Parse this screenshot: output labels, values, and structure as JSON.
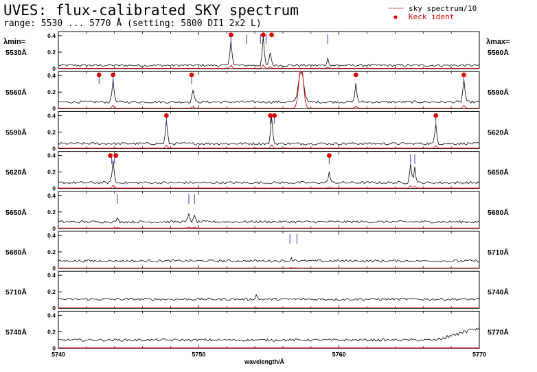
{
  "header": {
    "title": "UVES: flux-calibrated SKY spectrum",
    "subtitle": "range: 5530 ... 5770 Å (setting: 5800 DI1 2x2 L)",
    "lambda_min_label": "λmin=",
    "lambda_max_label": "λmax="
  },
  "legend": {
    "sky_label": "sky spectrum/10",
    "keck_label": "Keck ident"
  },
  "colors": {
    "spectrum": "#000000",
    "sky": "#e00000",
    "keck": "#e00000",
    "marker": "#3333cc"
  },
  "chart_data": {
    "type": "line",
    "xlabel": "wavelength/Å",
    "x_ticks": [
      "5740",
      "5750",
      "5760",
      "5770"
    ],
    "y_ticks": [
      "0",
      "0.2",
      "0.4"
    ],
    "ylim": [
      0,
      0.45
    ],
    "panels": [
      {
        "min_label": "5530Å",
        "max_label": "5560Å",
        "xmin": 5530,
        "xmax": 5560,
        "baseline": 0.04,
        "emission": [
          {
            "x": 5542.3,
            "y": 0.36
          },
          {
            "x": 5544.6,
            "y": 0.38
          },
          {
            "x": 5545.1,
            "y": 0.2
          },
          {
            "x": 5549.2,
            "y": 0.12
          }
        ],
        "markers": [
          5542.3,
          5543.4,
          5544.4,
          5544.8,
          5549.2
        ],
        "keck": [
          {
            "x": 5542.3,
            "y": 0.41
          },
          {
            "x": 5544.6,
            "y": 0.41
          },
          {
            "x": 5545.2,
            "y": 0.41
          }
        ]
      },
      {
        "min_label": "5560Å",
        "max_label": "5590Å",
        "xmin": 5560,
        "xmax": 5590,
        "baseline": 0.08,
        "emission": [
          {
            "x": 5563.9,
            "y": 0.36
          },
          {
            "x": 5569.6,
            "y": 0.24
          },
          {
            "x": 5577.3,
            "y": 0.48
          },
          {
            "x": 5581.2,
            "y": 0.3
          },
          {
            "x": 5588.9,
            "y": 0.36
          }
        ],
        "markers": [
          5562.9,
          5563.9,
          5569.5,
          5588.9
        ],
        "keck": [
          {
            "x": 5562.9,
            "y": 0.41
          },
          {
            "x": 5563.9,
            "y": 0.41
          },
          {
            "x": 5569.5,
            "y": 0.41
          },
          {
            "x": 5581.2,
            "y": 0.41
          },
          {
            "x": 5588.9,
            "y": 0.41
          }
        ]
      },
      {
        "min_label": "5590Å",
        "max_label": "5620Å",
        "xmin": 5590,
        "xmax": 5620,
        "baseline": 0.06,
        "emission": [
          {
            "x": 5597.7,
            "y": 0.34
          },
          {
            "x": 5605.2,
            "y": 0.38
          },
          {
            "x": 5616.9,
            "y": 0.3
          }
        ],
        "markers": [
          5597.7,
          5605.1,
          5605.4,
          5616.9
        ],
        "keck": [
          {
            "x": 5597.7,
            "y": 0.4
          },
          {
            "x": 5605.1,
            "y": 0.4
          },
          {
            "x": 5605.4,
            "y": 0.4
          },
          {
            "x": 5616.9,
            "y": 0.4
          }
        ]
      },
      {
        "min_label": "5620Å",
        "max_label": "5650Å",
        "xmin": 5620,
        "xmax": 5650,
        "baseline": 0.07,
        "emission": [
          {
            "x": 5623.9,
            "y": 0.34
          },
          {
            "x": 5639.3,
            "y": 0.2
          },
          {
            "x": 5645.1,
            "y": 0.3
          },
          {
            "x": 5645.4,
            "y": 0.26
          }
        ],
        "markers": [
          5623.8,
          5624.0,
          5639.3,
          5645.1,
          5645.4
        ],
        "keck": [
          {
            "x": 5623.7,
            "y": 0.4
          },
          {
            "x": 5624.1,
            "y": 0.4
          },
          {
            "x": 5639.3,
            "y": 0.4
          }
        ]
      },
      {
        "min_label": "5650Å",
        "max_label": "5680Å",
        "xmin": 5650,
        "xmax": 5680,
        "baseline": 0.08,
        "emission": [
          {
            "x": 5654.2,
            "y": 0.12
          },
          {
            "x": 5659.3,
            "y": 0.18
          },
          {
            "x": 5659.7,
            "y": 0.15
          }
        ],
        "markers": [
          5654.2,
          5659.3,
          5659.7
        ],
        "keck": []
      },
      {
        "min_label": "5680Å",
        "max_label": "5710Å",
        "xmin": 5680,
        "xmax": 5710,
        "baseline": 0.09,
        "emission": [
          {
            "x": 5696.6,
            "y": 0.12
          },
          {
            "x": 5696.9,
            "y": 0.11
          }
        ],
        "markers": [
          5696.5,
          5697.0
        ],
        "keck": []
      },
      {
        "min_label": "5710Å",
        "max_label": "5740Å",
        "xmin": 5710,
        "xmax": 5740,
        "baseline": 0.11,
        "emission": [
          {
            "x": 5724.1,
            "y": 0.16
          }
        ],
        "markers": [],
        "keck": []
      },
      {
        "min_label": "5740Å",
        "max_label": "5770Å",
        "xmin": 5740,
        "xmax": 5770,
        "baseline": 0.1,
        "emission": [],
        "markers": [],
        "keck": []
      }
    ]
  }
}
